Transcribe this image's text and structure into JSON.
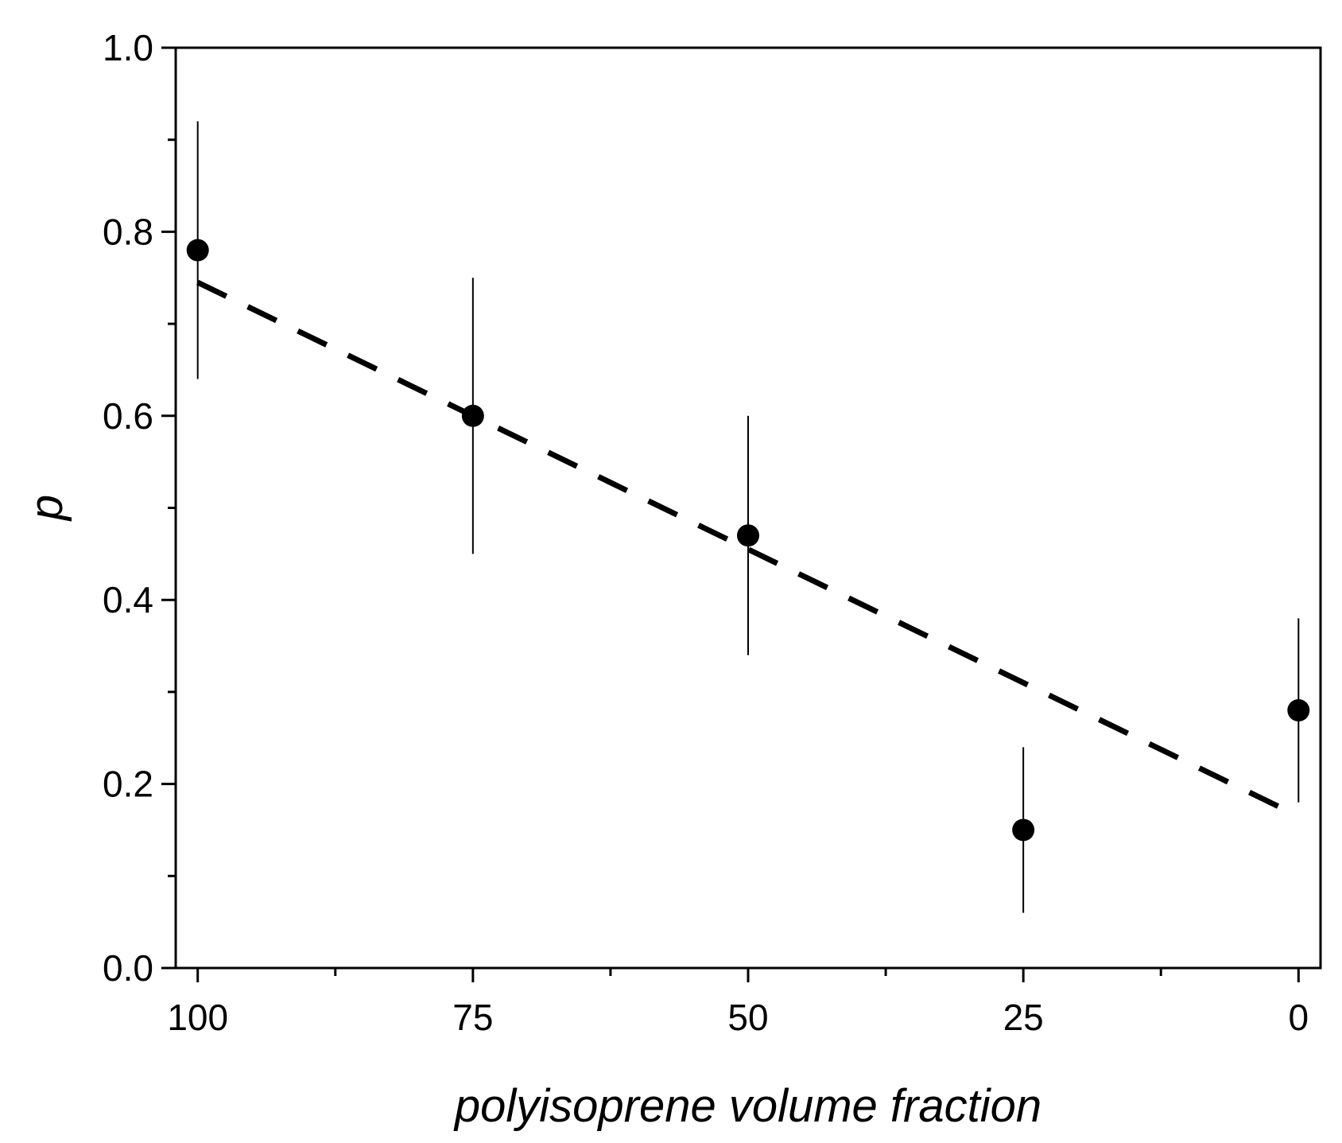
{
  "chart_data": {
    "type": "scatter",
    "xlabel": "polyisoprene volume fraction",
    "ylabel": "p",
    "xlim": [
      102,
      -2
    ],
    "x_reversed": true,
    "ylim": [
      0.0,
      1.0
    ],
    "x_ticks": [
      100,
      75,
      50,
      25,
      0
    ],
    "x_minor_ticks": [
      87.5,
      62.5,
      37.5,
      12.5
    ],
    "y_ticks": [
      0.0,
      0.2,
      0.4,
      0.6,
      0.8,
      1.0
    ],
    "y_tick_labels": [
      "0.0",
      "0.2",
      "0.4",
      "0.6",
      "0.8",
      "1.0"
    ],
    "y_minor_ticks": [
      0.1,
      0.3,
      0.5,
      0.7,
      0.9
    ],
    "grid": false,
    "series": [
      {
        "x": [
          100,
          75,
          50,
          25,
          0
        ],
        "y": [
          0.78,
          0.6,
          0.47,
          0.15,
          0.28
        ],
        "yerr_low": [
          0.64,
          0.45,
          0.34,
          0.06,
          0.18
        ],
        "yerr_high": [
          0.92,
          0.75,
          0.6,
          0.24,
          0.38
        ],
        "marker": "circle",
        "color": "#000000"
      }
    ],
    "fit_line": {
      "style": "dashed",
      "color": "#000000",
      "x": [
        100,
        0
      ],
      "y": [
        0.745,
        0.165
      ]
    }
  }
}
